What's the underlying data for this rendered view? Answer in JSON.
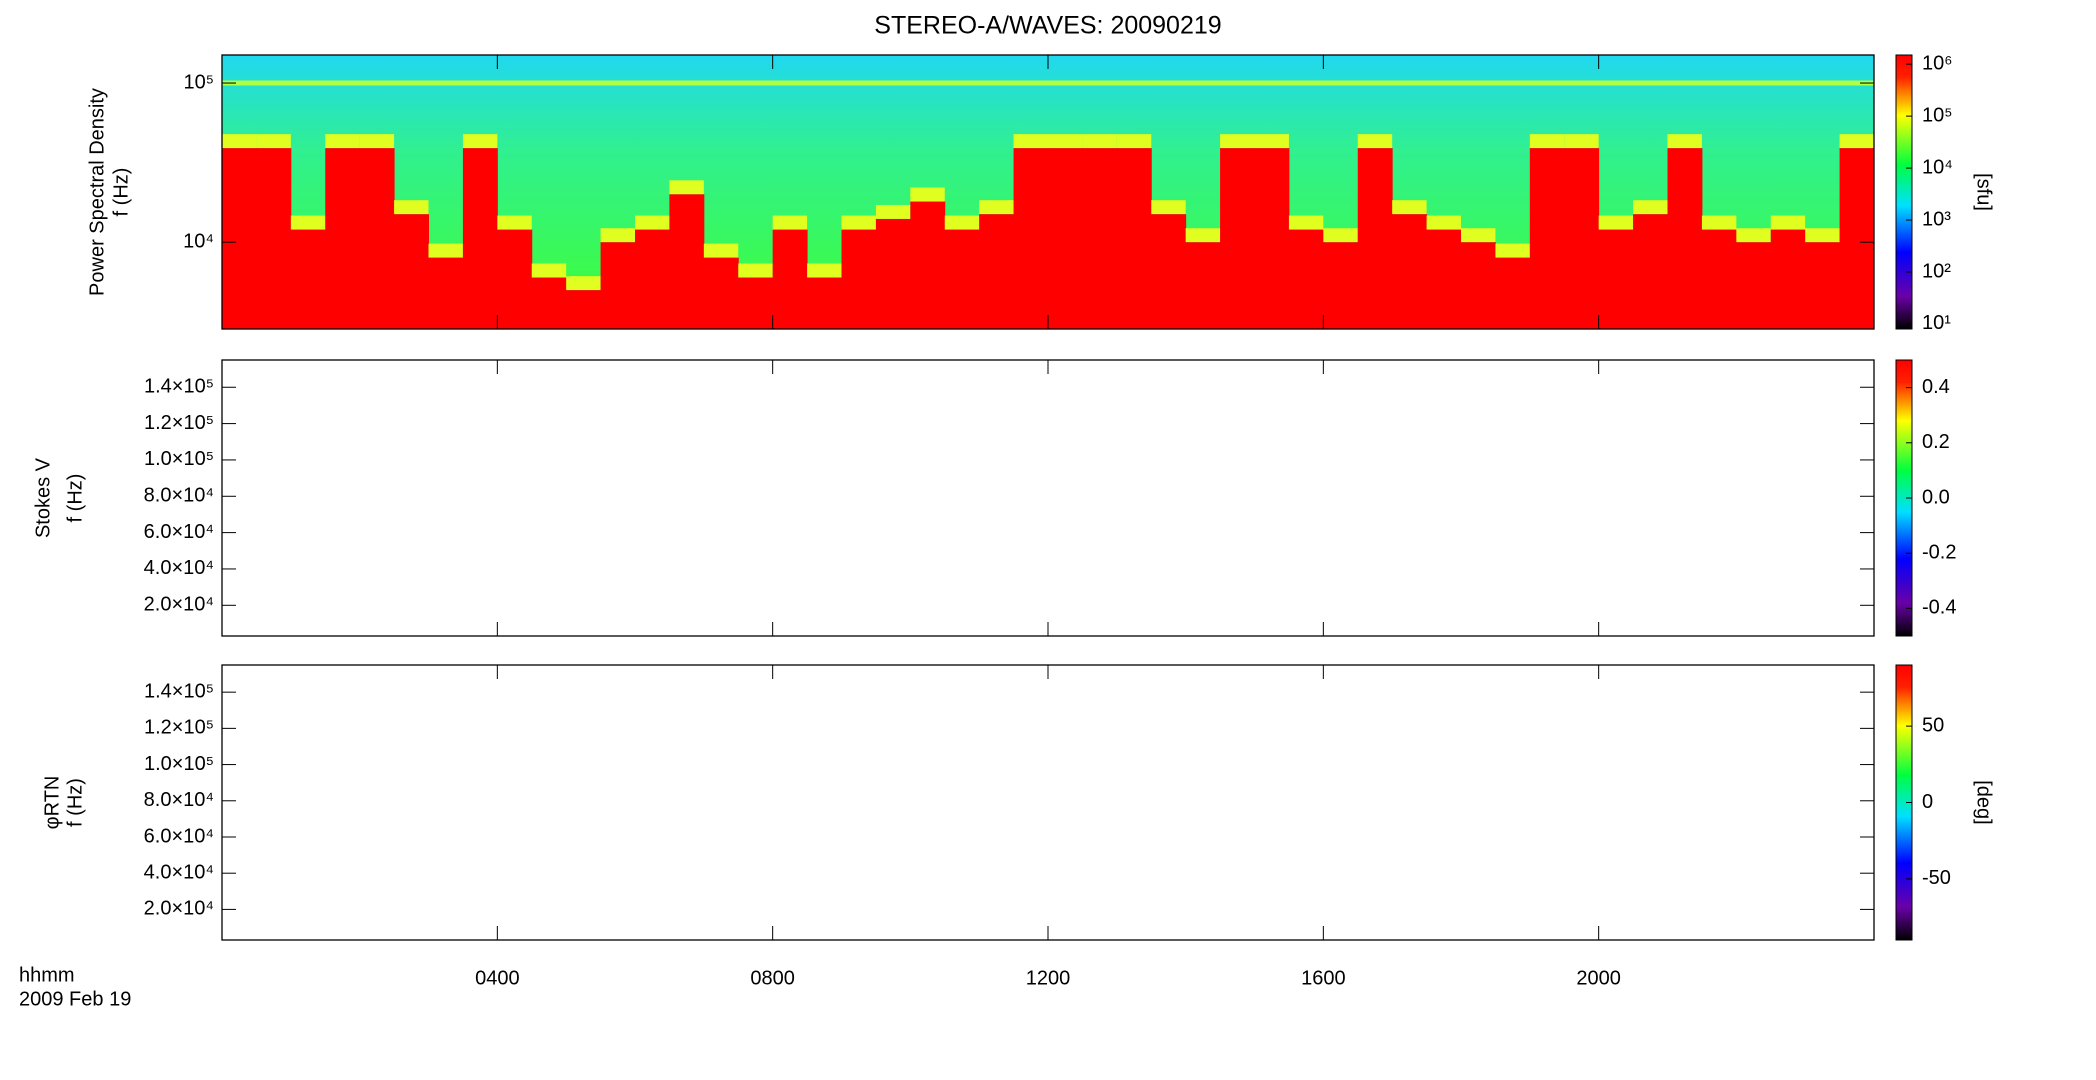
{
  "chart_data": [
    {
      "type": "spectrogram",
      "title": "STEREO-A/WAVES: 20090219",
      "ylabel": [
        "Power Spectral Density",
        "f (Hz)"
      ],
      "ylog": true,
      "xlim": [
        0,
        24
      ],
      "ylim": [
        2850,
        150000
      ],
      "yticks": [
        {
          "value": 10000,
          "label": "10⁴"
        },
        {
          "value": 100000,
          "label": "10⁵"
        }
      ],
      "x": [
        0.25,
        0.75,
        1.25,
        1.75,
        2.25,
        2.75,
        3.25,
        3.75,
        4.25,
        4.75,
        5.25,
        5.75,
        6.25,
        6.75,
        7.25,
        7.75,
        8.25,
        8.75,
        9.25,
        9.75,
        10.25,
        10.75,
        11.25,
        11.75,
        12.25,
        12.75,
        13.25,
        13.75,
        14.25,
        14.75,
        15.25,
        15.75,
        16.25,
        16.75,
        17.25,
        17.75,
        18.25,
        18.75,
        19.25,
        19.75,
        20.25,
        20.75,
        21.25,
        21.75,
        22.25,
        22.75,
        23.25,
        23.75
      ],
      "values": [
        39000,
        39000,
        12000,
        39000,
        39000,
        15000,
        8000,
        39000,
        12000,
        6000,
        5000,
        10000,
        12000,
        20000,
        8000,
        6000,
        12000,
        6000,
        12000,
        14000,
        18000,
        12000,
        15000,
        39000,
        39000,
        39000,
        39000,
        15000,
        10000,
        39000,
        39000,
        12000,
        10000,
        39000,
        15000,
        12000,
        10000,
        8000,
        39000,
        39000,
        12000,
        15000,
        39000,
        12000,
        10000,
        12000,
        10000,
        39000
      ],
      "color": "#ff0000",
      "colorbar": {
        "log": true,
        "lim": [
          8,
          1500000
        ],
        "label": "[sfu]",
        "ticks": [
          {
            "value": 10,
            "label": "10¹"
          },
          {
            "value": 100,
            "label": "10²"
          },
          {
            "value": 1000,
            "label": "10³"
          },
          {
            "value": 10000,
            "label": "10⁴"
          },
          {
            "value": 100000,
            "label": "10⁵"
          },
          {
            "value": 1000000,
            "label": "10⁶"
          }
        ]
      }
    },
    {
      "type": "spectrogram",
      "ylabel": [
        "Stokes V",
        "f (Hz)"
      ],
      "ylog": false,
      "xlim": [
        0,
        24
      ],
      "ylim": [
        3100,
        155000
      ],
      "yticks": [
        {
          "value": 20000,
          "label": "2.0×10⁴"
        },
        {
          "value": 40000,
          "label": "4.0×10⁴"
        },
        {
          "value": 60000,
          "label": "6.0×10⁴"
        },
        {
          "value": 80000,
          "label": "8.0×10⁴"
        },
        {
          "value": 100000,
          "label": "1.0×10⁵"
        },
        {
          "value": 120000,
          "label": "1.2×10⁵"
        },
        {
          "value": 140000,
          "label": "1.4×10⁵"
        }
      ],
      "colorbar": {
        "log": false,
        "lim": [
          -0.5,
          0.5
        ],
        "ticks": [
          -0.4,
          -0.2,
          {
            "value": 0,
            "label": "0.0"
          },
          0.2,
          0.4
        ]
      }
    },
    {
      "type": "spectrogram",
      "ylabel": [
        "φRTN",
        "f (Hz)"
      ],
      "ylog": false,
      "xlim": [
        0,
        24
      ],
      "ylim": [
        3100,
        155000
      ],
      "yticks": [
        {
          "value": 20000,
          "label": "2.0×10⁴"
        },
        {
          "value": 40000,
          "label": "4.0×10⁴"
        },
        {
          "value": 60000,
          "label": "6.0×10⁴"
        },
        {
          "value": 80000,
          "label": "8.0×10⁴"
        },
        {
          "value": 100000,
          "label": "1.0×10⁵"
        },
        {
          "value": 120000,
          "label": "1.2×10⁵"
        },
        {
          "value": 140000,
          "label": "1.4×10⁵"
        }
      ],
      "xticks": [
        {
          "value": 4,
          "label": "0400"
        },
        {
          "value": 8,
          "label": "0800"
        },
        {
          "value": 12,
          "label": "1200"
        },
        {
          "value": 16,
          "label": "1600"
        },
        {
          "value": 20,
          "label": "2000"
        }
      ],
      "xlabel": [
        "hhmm",
        "2009 Feb 19"
      ],
      "colorbar": {
        "log": false,
        "lim": [
          -90,
          90
        ],
        "label": "[deg]",
        "ticks": [
          -50,
          0,
          50
        ]
      }
    }
  ]
}
